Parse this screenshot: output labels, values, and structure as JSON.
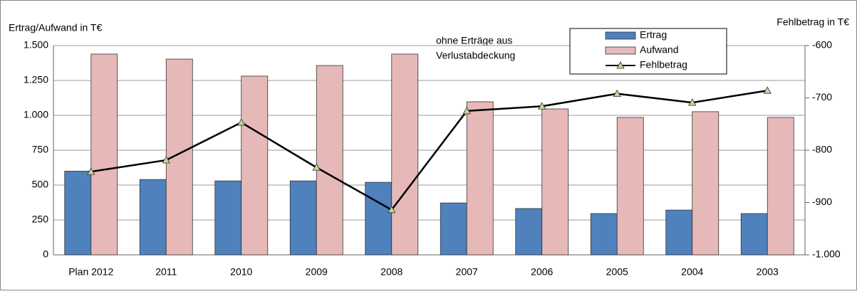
{
  "chart_data": {
    "type": "bar_line",
    "y_label": "Ertrag/Aufwand in T€",
    "y2_label": "Fehlbetrag in T€",
    "annotation": [
      "ohne Erträge aus",
      "Verlustabdeckung"
    ],
    "categories": [
      "Plan 2012",
      "2011",
      "2010",
      "2009",
      "2008",
      "2007",
      "2006",
      "2005",
      "2004",
      "2003"
    ],
    "series": [
      {
        "name": "Ertrag",
        "type": "bar",
        "color": "#4f81bd",
        "values": [
          600,
          540,
          530,
          530,
          520,
          372,
          332,
          296,
          321,
          296
        ]
      },
      {
        "name": "Aufwand",
        "type": "bar",
        "color": "#e6b9b8",
        "values": [
          1439,
          1403,
          1281,
          1357,
          1439,
          1097,
          1046,
          985,
          1026,
          985
        ]
      },
      {
        "name": "Fehlbetrag",
        "type": "line",
        "axis": "y2",
        "color": "#000000",
        "marker_color": "#c3d69b",
        "values": [
          -841,
          -819,
          -747,
          -833,
          -914,
          -725,
          -716,
          -692,
          -709,
          -686
        ]
      }
    ],
    "ylim": [
      0,
      1500
    ],
    "yticks": [
      0,
      250,
      500,
      750,
      {
        "value": 1000,
        "label": "1.000"
      },
      {
        "value": 1250,
        "label": "1.250"
      },
      {
        "value": 1500,
        "label": "1.500"
      }
    ],
    "y2lim": [
      -1000,
      -600
    ],
    "y2ticks": [
      {
        "value": -1000,
        "label": "-1.000"
      },
      -900,
      -800,
      -700,
      -600
    ],
    "grid": true
  }
}
